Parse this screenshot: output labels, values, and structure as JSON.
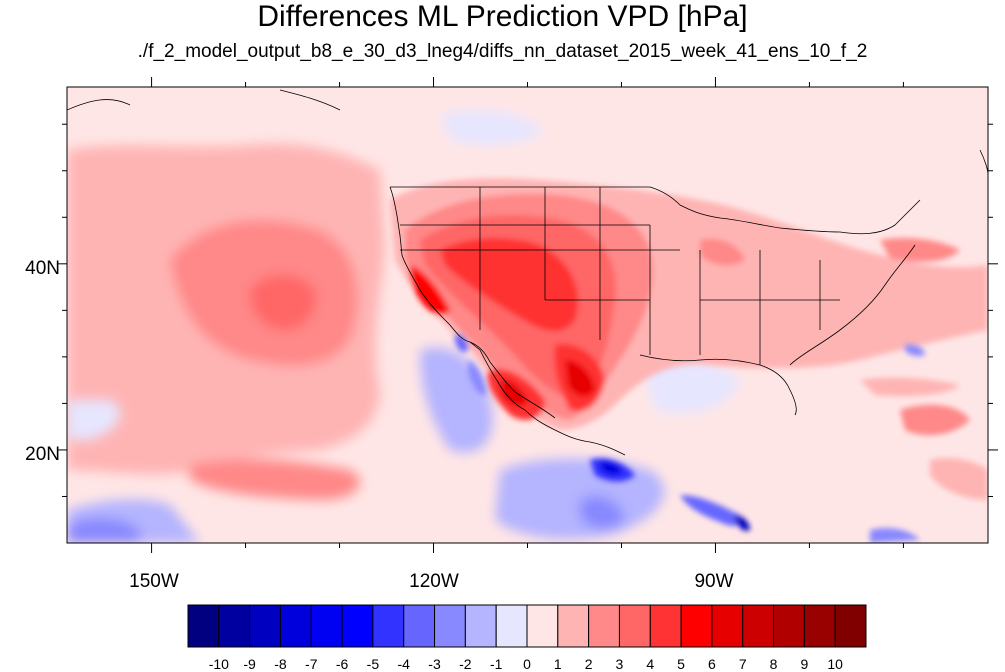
{
  "title": "Differences ML Prediction VPD [hPa]",
  "subtitle": "./f_2_model_output_b8_e_30_d3_lneg4/diffs_nn_dataset_2015_week_41_ens_10_f_2",
  "map": {
    "lat_labels": [
      "40N",
      "20N"
    ],
    "lon_labels": [
      "150W",
      "120W",
      "90W"
    ],
    "lon_range": [
      -159,
      -61
    ],
    "lat_range": [
      10,
      59
    ]
  },
  "colorbar": {
    "levels": [
      "-10",
      "-9",
      "-8",
      "-7",
      "-6",
      "-5",
      "-4",
      "-3",
      "-2",
      "-1",
      "0",
      "1",
      "2",
      "3",
      "4",
      "5",
      "6",
      "7",
      "8",
      "9",
      "10"
    ],
    "colors": [
      "#000080",
      "#0000a0",
      "#0000c0",
      "#0000dd",
      "#0000f2",
      "#0000ff",
      "#3333ff",
      "#6666ff",
      "#8888ff",
      "#b4b4ff",
      "#e6e6ff",
      "#ffe6e6",
      "#ffb4b4",
      "#ff8888",
      "#ff6666",
      "#ff3333",
      "#ff0000",
      "#e60000",
      "#cc0000",
      "#b00000",
      "#990000",
      "#800000"
    ]
  }
}
